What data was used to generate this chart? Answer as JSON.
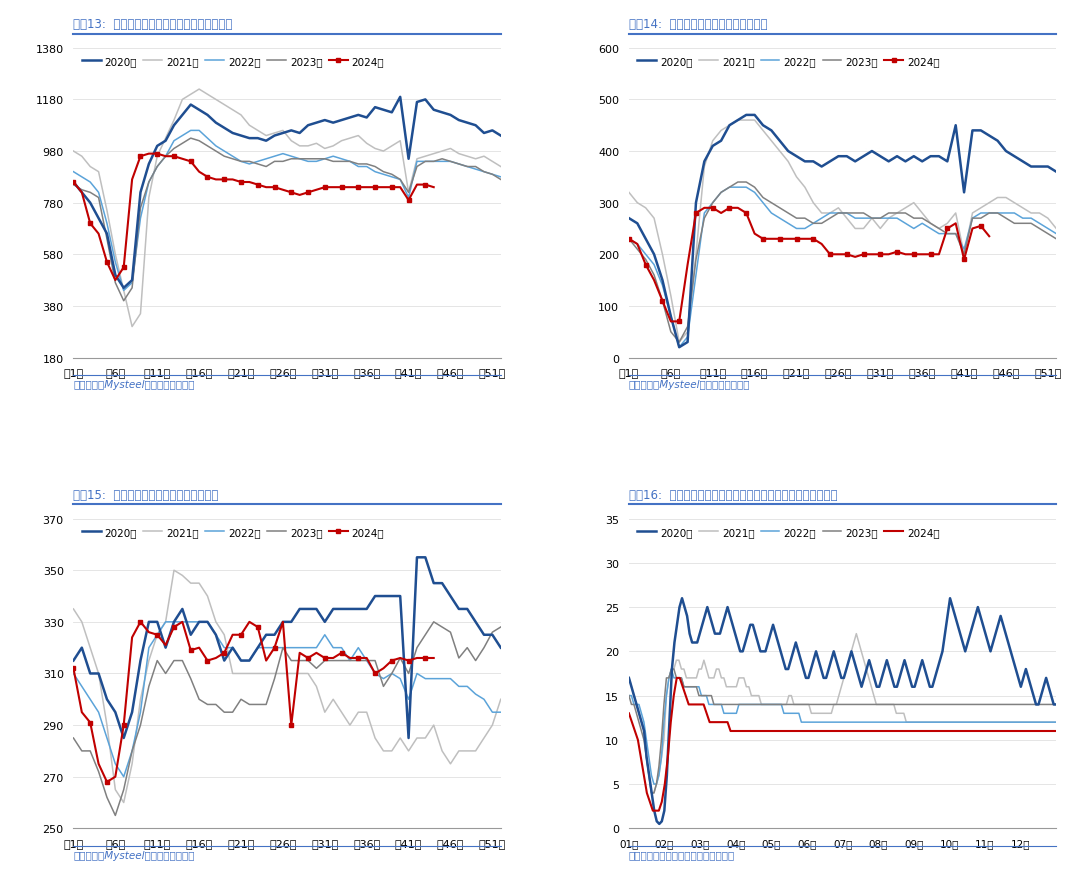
{
  "colors": {
    "2020": "#1f4e91",
    "2021": "#bfbfbf",
    "2022": "#5ba3d9",
    "2023": "#808080",
    "2024": "#c00000"
  },
  "title_color": "#4472c4",
  "source_color": "#4472c4",
  "bg_color": "#ffffff",
  "grid_color": "#e0e0e0",
  "weeks_ticks": [
    1,
    6,
    11,
    16,
    21,
    26,
    31,
    36,
    41,
    46,
    51
  ],
  "weeks_labels": [
    "第1周",
    "第6周",
    "第11周",
    "第16周",
    "第21周",
    "第26周",
    "第31周",
    "第36周",
    "第41周",
    "第46周",
    "第51周"
  ],
  "chart13": {
    "title": "图表13:  五大品种钢材周度表观消费量（万吨）",
    "source": "资料来源：Mysteel，国盛证券研究所",
    "ylim": [
      180,
      1380
    ],
    "yticks": [
      180,
      380,
      580,
      780,
      980,
      1180,
      1380
    ],
    "y2020": [
      860,
      820,
      780,
      720,
      660,
      500,
      450,
      480,
      820,
      930,
      1000,
      1020,
      1080,
      1120,
      1160,
      1140,
      1120,
      1090,
      1070,
      1050,
      1040,
      1030,
      1030,
      1020,
      1040,
      1050,
      1060,
      1050,
      1080,
      1090,
      1100,
      1090,
      1100,
      1110,
      1120,
      1110,
      1150,
      1140,
      1130,
      1190,
      950,
      1170,
      1180,
      1140,
      1130,
      1120,
      1100,
      1090,
      1080,
      1050,
      1060,
      1040
    ],
    "y2021": [
      980,
      960,
      920,
      900,
      750,
      580,
      440,
      300,
      350,
      800,
      960,
      1030,
      1100,
      1180,
      1200,
      1220,
      1200,
      1180,
      1160,
      1140,
      1120,
      1080,
      1060,
      1040,
      1050,
      1060,
      1020,
      1000,
      1000,
      1010,
      990,
      1000,
      1020,
      1030,
      1040,
      1010,
      990,
      980,
      1000,
      1020,
      820,
      950,
      960,
      970,
      980,
      990,
      970,
      960,
      950,
      960,
      940,
      920
    ],
    "y2022": [
      900,
      880,
      860,
      820,
      700,
      550,
      440,
      470,
      720,
      860,
      920,
      960,
      1020,
      1040,
      1060,
      1060,
      1030,
      1000,
      980,
      960,
      940,
      930,
      940,
      950,
      960,
      970,
      960,
      950,
      940,
      940,
      950,
      960,
      950,
      940,
      920,
      920,
      900,
      890,
      880,
      870,
      800,
      940,
      940,
      940,
      940,
      940,
      930,
      920,
      910,
      900,
      890,
      880
    ],
    "y2023": [
      850,
      830,
      820,
      800,
      640,
      470,
      400,
      450,
      760,
      860,
      920,
      960,
      990,
      1010,
      1030,
      1020,
      1000,
      980,
      960,
      950,
      940,
      940,
      930,
      920,
      940,
      940,
      950,
      950,
      950,
      950,
      950,
      940,
      940,
      940,
      930,
      930,
      920,
      900,
      890,
      870,
      820,
      920,
      940,
      940,
      950,
      940,
      930,
      920,
      920,
      900,
      890,
      870
    ],
    "y2024": [
      860,
      820,
      700,
      660,
      550,
      480,
      530,
      870,
      960,
      970,
      970,
      960,
      960,
      950,
      940,
      900,
      880,
      870,
      870,
      870,
      860,
      860,
      850,
      840,
      840,
      830,
      820,
      810,
      820,
      830,
      840,
      840,
      840,
      840,
      840,
      840,
      840,
      840,
      840,
      840,
      790,
      850,
      850,
      840
    ]
  },
  "chart14": {
    "title": "图表14:  螺纹钢周度表观消费量（万吨）",
    "source": "资料来源：Mysteel，国盛证券研究所",
    "ylim": [
      0,
      600
    ],
    "yticks": [
      0,
      100,
      200,
      300,
      400,
      500,
      600
    ],
    "y2020": [
      270,
      260,
      230,
      200,
      150,
      80,
      20,
      30,
      300,
      380,
      410,
      420,
      450,
      460,
      470,
      470,
      450,
      440,
      420,
      400,
      390,
      380,
      380,
      370,
      380,
      390,
      390,
      380,
      390,
      400,
      390,
      380,
      390,
      380,
      390,
      380,
      390,
      390,
      380,
      450,
      320,
      440,
      440,
      430,
      420,
      400,
      390,
      380,
      370,
      370,
      370,
      360
    ],
    "y2021": [
      320,
      300,
      290,
      270,
      200,
      120,
      30,
      50,
      200,
      370,
      420,
      440,
      450,
      460,
      460,
      460,
      440,
      420,
      400,
      380,
      350,
      330,
      300,
      280,
      280,
      290,
      270,
      250,
      250,
      270,
      250,
      270,
      280,
      290,
      300,
      280,
      260,
      250,
      260,
      280,
      200,
      280,
      290,
      300,
      310,
      310,
      300,
      290,
      280,
      280,
      270,
      250
    ],
    "y2022": [
      230,
      220,
      200,
      180,
      140,
      80,
      20,
      40,
      160,
      280,
      300,
      320,
      330,
      330,
      330,
      320,
      300,
      280,
      270,
      260,
      250,
      250,
      260,
      270,
      280,
      280,
      280,
      270,
      270,
      270,
      270,
      270,
      270,
      260,
      250,
      260,
      250,
      240,
      240,
      240,
      210,
      270,
      280,
      280,
      280,
      280,
      280,
      270,
      270,
      260,
      250,
      240
    ],
    "y2023": [
      230,
      210,
      190,
      160,
      110,
      50,
      30,
      60,
      190,
      270,
      300,
      320,
      330,
      340,
      340,
      330,
      310,
      300,
      290,
      280,
      270,
      270,
      260,
      260,
      270,
      280,
      280,
      280,
      280,
      270,
      270,
      280,
      280,
      280,
      270,
      270,
      260,
      250,
      240,
      240,
      200,
      270,
      270,
      280,
      280,
      270,
      260,
      260,
      260,
      250,
      240,
      230
    ],
    "y2024": [
      230,
      220,
      180,
      150,
      110,
      70,
      70,
      180,
      280,
      290,
      290,
      280,
      290,
      290,
      280,
      240,
      230,
      230,
      230,
      230,
      230,
      230,
      230,
      220,
      200,
      200,
      200,
      195,
      200,
      200,
      200,
      200,
      205,
      200,
      200,
      200,
      200,
      200,
      250,
      260,
      190,
      250,
      255,
      235
    ]
  },
  "chart15": {
    "title": "图表15:  热轧卷板周度表观消费量（万吨）",
    "source": "资料来源：Mysteel，国盛证券研究所",
    "ylim": [
      250,
      370
    ],
    "yticks": [
      250,
      270,
      290,
      310,
      330,
      350,
      370
    ],
    "y2020": [
      315,
      320,
      310,
      310,
      300,
      295,
      285,
      295,
      315,
      330,
      330,
      320,
      330,
      335,
      325,
      330,
      330,
      325,
      315,
      320,
      315,
      315,
      320,
      325,
      325,
      330,
      330,
      335,
      335,
      335,
      330,
      335,
      335,
      335,
      335,
      335,
      340,
      340,
      340,
      340,
      285,
      355,
      355,
      345,
      345,
      340,
      335,
      335,
      330,
      325,
      325,
      320
    ],
    "y2021": [
      335,
      330,
      320,
      310,
      290,
      265,
      260,
      275,
      300,
      315,
      325,
      330,
      350,
      348,
      345,
      345,
      340,
      330,
      325,
      310,
      310,
      310,
      310,
      310,
      310,
      310,
      310,
      310,
      310,
      305,
      295,
      300,
      295,
      290,
      295,
      295,
      285,
      280,
      280,
      285,
      280,
      285,
      285,
      290,
      280,
      275,
      280,
      280,
      280,
      285,
      290,
      300
    ],
    "y2022": [
      310,
      305,
      300,
      295,
      285,
      275,
      270,
      280,
      295,
      320,
      325,
      330,
      330,
      330,
      330,
      330,
      330,
      325,
      320,
      320,
      315,
      315,
      320,
      320,
      320,
      320,
      320,
      320,
      320,
      320,
      325,
      320,
      320,
      315,
      320,
      315,
      310,
      308,
      310,
      308,
      300,
      310,
      308,
      308,
      308,
      308,
      305,
      305,
      302,
      300,
      295,
      295
    ],
    "y2023": [
      285,
      280,
      280,
      272,
      262,
      255,
      265,
      280,
      290,
      305,
      315,
      310,
      315,
      315,
      308,
      300,
      298,
      298,
      295,
      295,
      300,
      298,
      298,
      298,
      308,
      320,
      315,
      315,
      315,
      312,
      315,
      315,
      315,
      315,
      315,
      315,
      315,
      305,
      310,
      316,
      310,
      320,
      325,
      330,
      328,
      326,
      316,
      320,
      315,
      320,
      326,
      328
    ],
    "y2024": [
      312,
      295,
      291,
      275,
      268,
      270,
      290,
      324,
      330,
      326,
      325,
      321,
      328,
      330,
      319,
      320,
      315,
      316,
      318,
      325,
      325,
      330,
      328,
      315,
      320,
      330,
      290,
      318,
      316,
      318,
      316,
      316,
      318,
      316,
      316,
      316,
      310,
      312,
      315,
      316,
      315,
      316,
      316,
      316
    ]
  },
  "chart16": {
    "title": "图表16:  主流贸易商日度建材成交量（五日移动平均）（万吨）",
    "source": "资料来源：钢联数据，国盛证券研究所",
    "ylim": [
      0,
      35
    ],
    "yticks": [
      0,
      5,
      10,
      15,
      20,
      25,
      30,
      35
    ],
    "xtick_pos": [
      0,
      1,
      2,
      3,
      4,
      6,
      7,
      8,
      9,
      10,
      11
    ],
    "xlabel_months": [
      "01月",
      "02月",
      "03月",
      "04月",
      "05月",
      "07月",
      "08月",
      "09月",
      "10月",
      "11月",
      "12月"
    ],
    "y2020": [
      17,
      16,
      15,
      14,
      13,
      12,
      11,
      8,
      6,
      4,
      2,
      0.8,
      0.5,
      0.8,
      2,
      6,
      12,
      18,
      21,
      23,
      25,
      26,
      25,
      24,
      22,
      21,
      21,
      21,
      22,
      23,
      24,
      25,
      24,
      23,
      22,
      22,
      22,
      23,
      24,
      25,
      24,
      23,
      22,
      21,
      20,
      20,
      21,
      22,
      23,
      23,
      22,
      21,
      20,
      20,
      20,
      21,
      22,
      23,
      22,
      21,
      20,
      19,
      18,
      18,
      19,
      20,
      21,
      20,
      19,
      18,
      17,
      17,
      18,
      19,
      20,
      19,
      18,
      17,
      17,
      18,
      19,
      20,
      19,
      18,
      17,
      17,
      18,
      19,
      20,
      19,
      18,
      17,
      16,
      17,
      18,
      19,
      18,
      17,
      16,
      16,
      17,
      18,
      19,
      18,
      17,
      16,
      16,
      17,
      18,
      19,
      18,
      17,
      16,
      16,
      17,
      18,
      19,
      18,
      17,
      16,
      16,
      17,
      18,
      19,
      20,
      22,
      24,
      26,
      25,
      24,
      23,
      22,
      21,
      20,
      21,
      22,
      23,
      24,
      25,
      24,
      23,
      22,
      21,
      20,
      21,
      22,
      23,
      24,
      23,
      22,
      21,
      20,
      19,
      18,
      17,
      16,
      17,
      18,
      17,
      16,
      15,
      14,
      14,
      15,
      16,
      17,
      16,
      15,
      14,
      14
    ],
    "y2021": [
      17,
      16,
      15,
      14,
      13,
      12,
      11,
      8,
      6,
      4,
      4,
      5,
      6,
      8,
      10,
      15,
      17,
      18,
      18,
      19,
      19,
      18,
      18,
      17,
      17,
      17,
      17,
      17,
      18,
      18,
      19,
      18,
      17,
      17,
      17,
      18,
      18,
      17,
      17,
      16,
      16,
      16,
      16,
      16,
      17,
      17,
      17,
      16,
      16,
      15,
      15,
      15,
      15,
      14,
      14,
      14,
      14,
      14,
      14,
      14,
      14,
      14,
      14,
      14,
      15,
      15,
      14,
      14,
      14,
      14,
      14,
      14,
      14,
      13,
      13,
      13,
      13,
      13,
      13,
      13,
      13,
      13,
      14,
      14,
      15,
      16,
      17,
      18,
      19,
      20,
      21,
      22,
      21,
      20,
      19,
      18,
      17,
      16,
      15,
      14,
      14,
      14,
      14,
      14,
      14,
      14,
      14,
      13,
      13,
      13,
      13,
      12,
      12,
      12,
      12,
      12,
      12,
      12,
      12,
      12,
      12,
      12,
      12,
      12,
      12,
      12,
      12,
      12,
      12,
      12,
      12,
      12,
      12,
      12,
      12,
      12,
      12,
      12,
      12,
      12,
      12,
      12,
      12,
      12,
      12,
      12,
      12,
      12,
      12,
      12,
      12,
      12,
      12,
      12,
      12,
      12,
      12,
      12,
      12,
      12,
      12,
      12,
      12,
      12,
      12,
      12,
      12,
      12,
      12,
      12,
      12,
      12
    ],
    "y2022": [
      15,
      15,
      14,
      14,
      14,
      13,
      12,
      10,
      8,
      6,
      5,
      5,
      6,
      8,
      12,
      15,
      17,
      18,
      17,
      17,
      17,
      17,
      16,
      16,
      16,
      16,
      16,
      16,
      16,
      15,
      15,
      15,
      14,
      14,
      14,
      14,
      14,
      14,
      13,
      13,
      13,
      13,
      13,
      13,
      14,
      14,
      14,
      14,
      14,
      14,
      14,
      14,
      14,
      14,
      14,
      14,
      14,
      14,
      14,
      14,
      14,
      14,
      13,
      13,
      13,
      13,
      13,
      13,
      13,
      12,
      12,
      12,
      12,
      12,
      12,
      12,
      12,
      12,
      12,
      12,
      12,
      12,
      12,
      12,
      12,
      12,
      12,
      12,
      12,
      12,
      12,
      12,
      12,
      12,
      12,
      12,
      12,
      12,
      12,
      12,
      12,
      12,
      12,
      12,
      12,
      12,
      12,
      12,
      12,
      12,
      12,
      12,
      12,
      12,
      12,
      12,
      12,
      12,
      12,
      12,
      12,
      12,
      12,
      12,
      12,
      12,
      12,
      12,
      12,
      12,
      12,
      12,
      12,
      12,
      12,
      12,
      12,
      12,
      12,
      12,
      12,
      12,
      12,
      12,
      12,
      12,
      12,
      12,
      12,
      12,
      12,
      12,
      12,
      12,
      12,
      12,
      12,
      12,
      12,
      12,
      12,
      12,
      12,
      12,
      12,
      12,
      12,
      12,
      12,
      12,
      12,
      12
    ],
    "y2023": [
      15,
      14,
      14,
      13,
      12,
      11,
      10,
      8,
      6,
      4,
      4,
      5,
      7,
      10,
      14,
      17,
      17,
      18,
      18,
      17,
      17,
      17,
      16,
      16,
      16,
      16,
      16,
      16,
      15,
      15,
      15,
      15,
      15,
      15,
      14,
      14,
      14,
      14,
      14,
      14,
      14,
      14,
      14,
      14,
      14,
      14,
      14,
      14,
      14,
      14,
      14,
      14,
      14,
      14,
      14,
      14,
      14,
      14,
      14,
      14,
      14,
      14,
      14,
      14,
      14,
      14,
      14,
      14,
      14,
      14,
      14,
      14,
      14,
      14,
      14,
      14,
      14,
      14,
      14,
      14,
      14,
      14,
      14,
      14,
      14,
      14,
      14,
      14,
      14,
      14,
      14,
      14,
      14,
      14,
      14,
      14,
      14,
      14,
      14,
      14,
      14,
      14,
      14,
      14,
      14,
      14,
      14,
      14,
      14,
      14,
      14,
      14,
      14,
      14,
      14,
      14,
      14,
      14,
      14,
      14,
      14,
      14,
      14,
      14,
      14,
      14,
      14,
      14,
      14,
      14,
      14,
      14,
      14,
      14,
      14,
      14,
      14,
      14,
      14,
      14,
      14,
      14,
      14,
      14,
      14,
      14,
      14,
      14,
      14,
      14,
      14,
      14,
      14,
      14,
      14,
      14,
      14,
      14,
      14,
      14,
      14,
      14,
      14,
      14,
      14,
      14,
      14,
      14,
      14,
      14,
      14,
      14
    ],
    "y2024": [
      13,
      12,
      11,
      10,
      8,
      6,
      4,
      3,
      2,
      2,
      2,
      3,
      5,
      8,
      12,
      15,
      17,
      17,
      16,
      15,
      14,
      14,
      14,
      14,
      14,
      14,
      13,
      12,
      12,
      12,
      12,
      12,
      12,
      12,
      11,
      11,
      11,
      11,
      11,
      11,
      11,
      11,
      11,
      11,
      11,
      11,
      11,
      11,
      11,
      11,
      11,
      11,
      11,
      11,
      11,
      11,
      11,
      11,
      11,
      11,
      11,
      11,
      11,
      11,
      11,
      11,
      11,
      11,
      11,
      11,
      11,
      11,
      11,
      11,
      11,
      11,
      11,
      11,
      11,
      11,
      11,
      11,
      11,
      11,
      11,
      11,
      11,
      11,
      11,
      11,
      11,
      11,
      11,
      11,
      11,
      11,
      11,
      11,
      11,
      11,
      11,
      11,
      11,
      11,
      11,
      11,
      11,
      11,
      11,
      11,
      11,
      11,
      11,
      11,
      11,
      11,
      11,
      11,
      11,
      11,
      11,
      11,
      11,
      11,
      11,
      11,
      11,
      11,
      11,
      11,
      11,
      11,
      11,
      11,
      11,
      11,
      11,
      11,
      11,
      11,
      11,
      11,
      11,
      11
    ]
  }
}
